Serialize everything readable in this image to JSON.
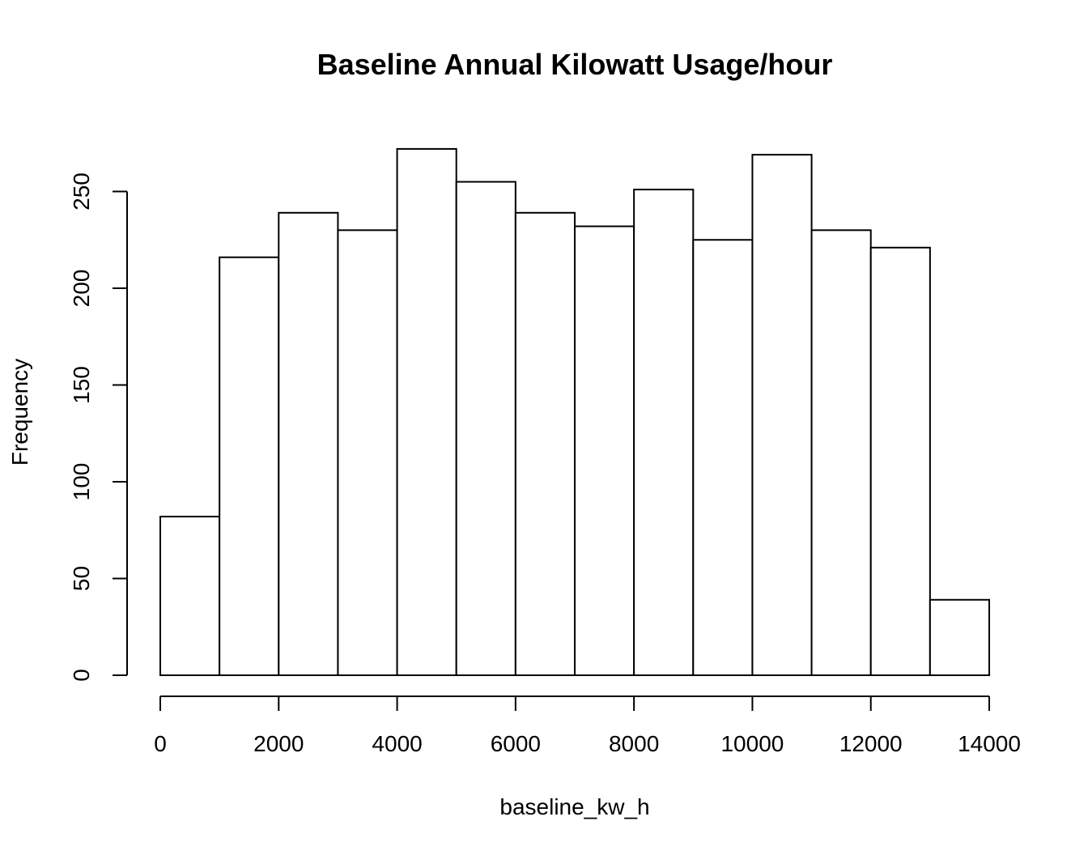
{
  "chart_data": {
    "type": "bar",
    "subtype": "histogram",
    "title": "Baseline Annual Kilowatt Usage/hour",
    "xlabel": "baseline_kw_h",
    "ylabel": "Frequency",
    "bin_edges": [
      0,
      1000,
      2000,
      3000,
      4000,
      5000,
      6000,
      7000,
      8000,
      9000,
      10000,
      11000,
      12000,
      13000,
      14000
    ],
    "values": [
      82,
      216,
      239,
      230,
      272,
      255,
      239,
      232,
      251,
      225,
      269,
      230,
      221,
      39
    ],
    "xlim": [
      0,
      14000
    ],
    "ylim": [
      0,
      272
    ],
    "x_ticks": [
      0,
      2000,
      4000,
      6000,
      8000,
      10000,
      12000,
      14000
    ],
    "x_tick_labels": [
      "0",
      "2000",
      "4000",
      "6000",
      "8000",
      "10000",
      "12000",
      "14000"
    ],
    "y_ticks": [
      0,
      50,
      100,
      150,
      200,
      250
    ],
    "y_tick_labels": [
      "0",
      "50",
      "100",
      "150",
      "200",
      "250"
    ],
    "grid": false,
    "colors": {
      "bar_fill": "#ffffff",
      "bar_stroke": "#000000"
    }
  }
}
